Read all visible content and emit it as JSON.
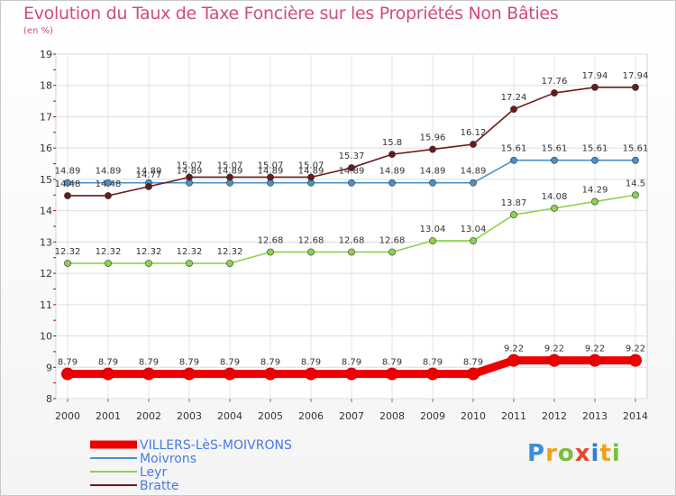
{
  "chart_data": {
    "type": "line",
    "title": "Evolution du Taux de Taxe Foncière sur les Propriétés Non Bâties",
    "unit_label": "(en %)",
    "x": [
      "2000",
      "2001",
      "2002",
      "2003",
      "2004",
      "2005",
      "2006",
      "2007",
      "2008",
      "2009",
      "2010",
      "2011",
      "2012",
      "2013",
      "2014"
    ],
    "ylim": [
      8,
      19
    ],
    "yticks": [
      "8",
      "9",
      "10",
      "11",
      "12",
      "13",
      "14",
      "15",
      "16",
      "17",
      "18",
      "19"
    ],
    "grid": true,
    "legend_position": "bottom-left",
    "series": [
      {
        "name": "VILLERS-LèS-MOIVRONS",
        "color": "#ee0000",
        "labels": [
          "8.79",
          "8.79",
          "8.79",
          "8.79",
          "8.79",
          "8.79",
          "8.79",
          "8.79",
          "8.79",
          "8.79",
          "8.79",
          "9.22",
          "9.22",
          "9.22",
          "9.22"
        ],
        "values": [
          8.79,
          8.79,
          8.79,
          8.79,
          8.79,
          8.79,
          8.79,
          8.79,
          8.79,
          8.79,
          8.79,
          9.22,
          9.22,
          9.22,
          9.22
        ]
      },
      {
        "name": "Moivrons",
        "color": "#4a90c8",
        "labels": [
          "14.89",
          "14.89",
          "14.89",
          "14.89",
          "14.89",
          "14.89",
          "14.89",
          "14.89",
          "14.89",
          "14.89",
          "14.89",
          "15.61",
          "15.61",
          "15.61",
          "15.61"
        ],
        "values": [
          14.89,
          14.89,
          14.89,
          14.89,
          14.89,
          14.89,
          14.89,
          14.89,
          14.89,
          14.89,
          14.89,
          15.61,
          15.61,
          15.61,
          15.61
        ]
      },
      {
        "name": "Leyr",
        "color": "#8cd24c",
        "labels": [
          "12.32",
          "12.32",
          "12.32",
          "12.32",
          "12.32",
          "12.68",
          "12.68",
          "12.68",
          "12.68",
          "13.04",
          "13.04",
          "13.87",
          "14.08",
          "14.29",
          "14.5"
        ],
        "values": [
          12.32,
          12.32,
          12.32,
          12.32,
          12.32,
          12.68,
          12.68,
          12.68,
          12.68,
          13.04,
          13.04,
          13.87,
          14.08,
          14.29,
          14.5
        ]
      },
      {
        "name": "Bratte",
        "color": "#6b1a1a",
        "labels": [
          "14.48",
          "14.48",
          "14.77",
          "15.07",
          "15.07",
          "15.07",
          "15.07",
          "15.37",
          "15.8",
          "15.96",
          "16.12",
          "17.24",
          "17.76",
          "17.94",
          "17.94"
        ],
        "values": [
          14.48,
          14.48,
          14.77,
          15.07,
          15.07,
          15.07,
          15.07,
          15.37,
          15.8,
          15.96,
          16.12,
          17.24,
          17.76,
          17.94,
          17.94
        ]
      }
    ]
  },
  "logo": {
    "p": "P",
    "r": "r",
    "o": "o",
    "x": "x",
    "i": "i",
    "t": "t",
    "i2": "i"
  }
}
